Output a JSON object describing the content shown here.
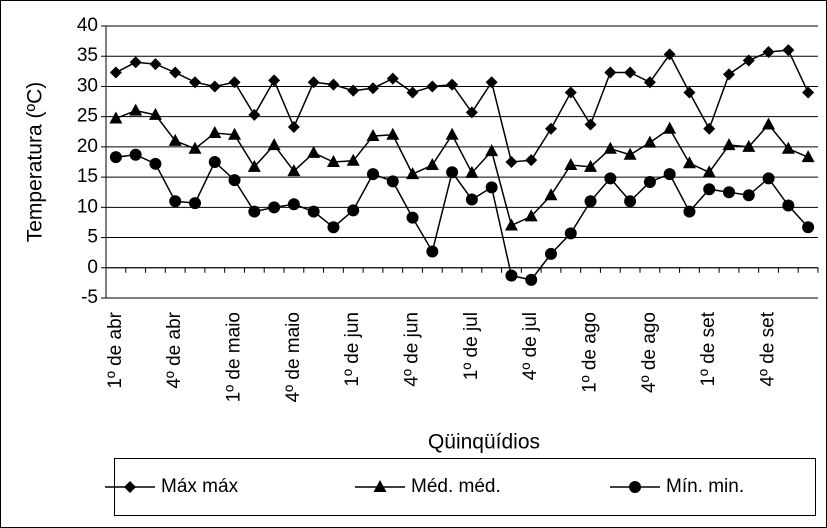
{
  "chart_data": {
    "type": "line",
    "categories": [
      "1º de abr",
      null,
      null,
      "4º de abr",
      null,
      null,
      "1º de maio",
      null,
      null,
      "4º de maio",
      null,
      null,
      "1º de jun",
      null,
      null,
      "4º de jun",
      null,
      null,
      "1º de jul",
      null,
      null,
      "4º de jul",
      null,
      null,
      "1º de ago",
      null,
      null,
      "4º de ago",
      null,
      null,
      "1º de set",
      null,
      null,
      "4º de set",
      null,
      null
    ],
    "series": [
      {
        "name": "Máx máx",
        "color": "#000000",
        "marker": "diamond",
        "values": [
          32.3,
          34,
          33.7,
          32.3,
          30.7,
          30,
          30.7,
          25.3,
          31,
          23.3,
          30.7,
          30.3,
          29.3,
          29.7,
          31.3,
          29,
          30,
          30.3,
          25.7,
          30.7,
          17.5,
          17.8,
          23,
          29,
          23.7,
          32.3,
          32.3,
          30.7,
          35.3,
          29,
          23,
          32,
          34.3,
          35.7,
          36,
          29
        ]
      },
      {
        "name": "Méd. méd.",
        "color": "#000000",
        "marker": "triangle",
        "values": [
          24.7,
          26,
          25.3,
          21,
          19.7,
          22.3,
          22,
          16.7,
          20.3,
          16,
          19,
          17.5,
          17.7,
          21.8,
          22,
          15.5,
          17,
          22,
          15.7,
          19.3,
          7,
          8.5,
          12,
          17,
          16.7,
          19.7,
          18.7,
          20.7,
          23,
          17.3,
          15.8,
          20.3,
          20,
          23.7,
          19.7,
          18.3
        ]
      },
      {
        "name": "Mín. min.",
        "color": "#000000",
        "marker": "circle",
        "values": [
          18.3,
          18.7,
          17.2,
          11,
          10.7,
          17.5,
          14.5,
          9.3,
          10,
          10.5,
          9.3,
          6.7,
          9.5,
          15.5,
          14.3,
          8.3,
          2.7,
          15.8,
          11.3,
          13.3,
          -1.3,
          -2,
          2.3,
          5.7,
          11,
          14.8,
          11,
          14.2,
          15.5,
          9.3,
          13,
          12.5,
          12,
          14.8,
          10.3,
          6.7
        ]
      }
    ],
    "ylim": [
      -5,
      40
    ],
    "yticks": [
      -5,
      0,
      5,
      10,
      15,
      20,
      25,
      30,
      35,
      40
    ],
    "grid": true,
    "y_label": "Temperatura (ºC)",
    "x_label": "Qüinqüídios",
    "legend": "bottom"
  }
}
